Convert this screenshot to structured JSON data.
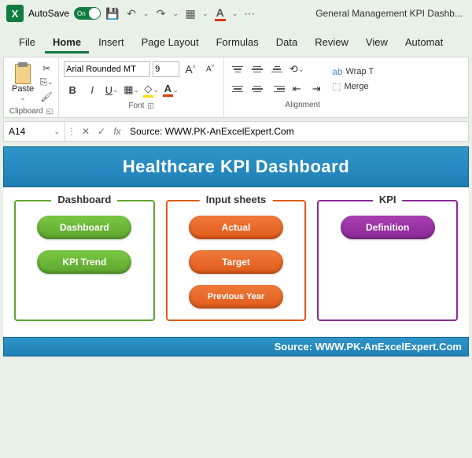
{
  "titlebar": {
    "autosave_label": "AutoSave",
    "autosave_state": "On",
    "doc_name": "General Management KPI Dashb..."
  },
  "tabs": {
    "file": "File",
    "home": "Home",
    "insert": "Insert",
    "page_layout": "Page Layout",
    "formulas": "Formulas",
    "data": "Data",
    "review": "Review",
    "view": "View",
    "automate": "Automat"
  },
  "ribbon": {
    "clipboard": {
      "paste": "Paste",
      "group": "Clipboard"
    },
    "font": {
      "name": "Arial Rounded MT",
      "size": "9",
      "group": "Font"
    },
    "alignment": {
      "wrap": "Wrap T",
      "merge": "Merge",
      "group": "Alignment"
    }
  },
  "formula_bar": {
    "cell_ref": "A14",
    "content": "Source: WWW.PK-AnExcelExpert.Com"
  },
  "dashboard": {
    "title": "Healthcare KPI Dashboard",
    "panels": {
      "dashboard": {
        "legend": "Dashboard",
        "color": "#5da52f",
        "buttons": [
          "Dashboard",
          "KPI Trend"
        ]
      },
      "input": {
        "legend": "Input sheets",
        "color": "#e05a1a",
        "buttons": [
          "Actual",
          "Target",
          "Previous Year"
        ]
      },
      "kpi": {
        "legend": "KPI",
        "color": "#8b2a95",
        "buttons": [
          "Definition"
        ]
      }
    },
    "footer": "Source: WWW.PK-AnExcelExpert.Com"
  }
}
